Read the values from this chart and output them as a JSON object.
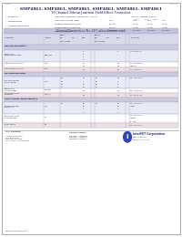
{
  "bg_color": "#ffffff",
  "text_color": "#1a1a4a",
  "table_border": "#aaaacc",
  "section_header_bg": "#c8ccdd",
  "off_char_bg": "#e8eaf5",
  "on_char_bg": "#f5e8e8",
  "col_header_bg": "#d8daea",
  "elec_header_bg": "#c0c4d8",
  "pink_row": "#f0e0e0",
  "white_row": "#ffffff",
  "blue_row": "#e8eaf5",
  "footer_color": "#444444",
  "link_color": "#2244aa",
  "logo_blue": "#2233aa"
}
